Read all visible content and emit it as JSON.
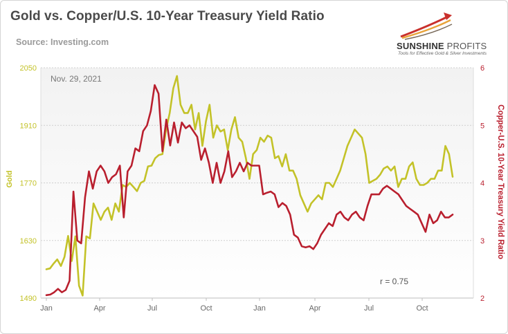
{
  "header": {
    "title": "Gold vs. Copper/U.S. 10-Year Treasury Yield Ratio",
    "source": "Source: Investing.com"
  },
  "logo": {
    "name_a": "SUNSHINE",
    "name_b": "PROFITS",
    "tagline": "Tools for Effective Gold & Silver Investments",
    "colors": [
      "#c9302c",
      "#e8a33a",
      "#7a6b5b"
    ]
  },
  "chart_data": {
    "type": "line",
    "date_label": "Nov. 29, 2021",
    "annotation": "r = 0.75",
    "x_tick_labels": [
      "Jan",
      "Apr",
      "Jul",
      "Oct",
      "Jan",
      "Apr",
      "Jul",
      "Oct"
    ],
    "y_left": {
      "label": "Gold",
      "ticks": [
        1490,
        1630,
        1770,
        1910,
        2050
      ],
      "range": [
        1490,
        2050
      ],
      "color": "#c3c228"
    },
    "y_right": {
      "label": "Copper-U.S. 10-Year Treasury Yield Ratio",
      "ticks": [
        2,
        3,
        4,
        5,
        6
      ],
      "range": [
        2,
        6
      ],
      "color": "#b91f2e"
    },
    "grid": true,
    "legend": "none",
    "series": [
      {
        "axis": "left",
        "color": "#c3c228",
        "values": [
          1560,
          1562,
          1574,
          1584,
          1568,
          1590,
          1641,
          1580,
          1640,
          1520,
          1496,
          1640,
          1635,
          1720,
          1700,
          1680,
          1700,
          1710,
          1680,
          1720,
          1700,
          1765,
          1760,
          1770,
          1760,
          1750,
          1770,
          1775,
          1810,
          1812,
          1830,
          1838,
          1840,
          1900,
          1940,
          2000,
          2030,
          1960,
          1940,
          1940,
          1960,
          1900,
          1940,
          1860,
          1920,
          1960,
          1880,
          1910,
          1895,
          1900,
          1850,
          1900,
          1930,
          1880,
          1870,
          1830,
          1780,
          1840,
          1850,
          1880,
          1870,
          1885,
          1880,
          1830,
          1835,
          1810,
          1840,
          1800,
          1800,
          1780,
          1740,
          1720,
          1700,
          1720,
          1730,
          1740,
          1730,
          1770,
          1770,
          1760,
          1780,
          1800,
          1830,
          1860,
          1880,
          1900,
          1890,
          1880,
          1840,
          1770,
          1775,
          1780,
          1790,
          1805,
          1810,
          1800,
          1810,
          1760,
          1780,
          1780,
          1810,
          1820,
          1780,
          1765,
          1765,
          1770,
          1780,
          1780,
          1800,
          1800,
          1860,
          1840,
          1785
        ]
      },
      {
        "axis": "right",
        "color": "#b91f2e",
        "values": [
          2.05,
          2.06,
          2.1,
          2.16,
          2.1,
          2.14,
          2.3,
          3.85,
          3.0,
          2.95,
          3.75,
          4.2,
          3.9,
          4.2,
          4.3,
          4.2,
          4.0,
          4.1,
          4.15,
          4.3,
          3.4,
          4.2,
          4.3,
          4.6,
          4.55,
          4.9,
          5.0,
          5.25,
          5.7,
          5.55,
          4.55,
          5.1,
          4.65,
          5.05,
          4.7,
          5.05,
          4.95,
          5.0,
          4.9,
          4.8,
          4.4,
          4.6,
          4.35,
          4.0,
          4.35,
          4.0,
          4.2,
          4.55,
          4.1,
          4.2,
          4.35,
          4.2,
          4.35,
          4.3,
          4.3,
          4.3,
          3.8,
          3.83,
          3.85,
          3.8,
          3.58,
          3.65,
          3.6,
          3.45,
          3.1,
          3.05,
          2.9,
          2.88,
          2.9,
          2.85,
          2.95,
          3.1,
          3.2,
          3.3,
          3.25,
          3.45,
          3.5,
          3.4,
          3.35,
          3.45,
          3.5,
          3.4,
          3.35,
          3.6,
          3.8,
          3.8,
          3.8,
          3.9,
          3.95,
          3.9,
          3.85,
          3.8,
          3.7,
          3.6,
          3.55,
          3.5,
          3.45,
          3.3,
          3.15,
          3.45,
          3.3,
          3.35,
          3.5,
          3.4,
          3.4,
          3.45
        ]
      }
    ]
  }
}
